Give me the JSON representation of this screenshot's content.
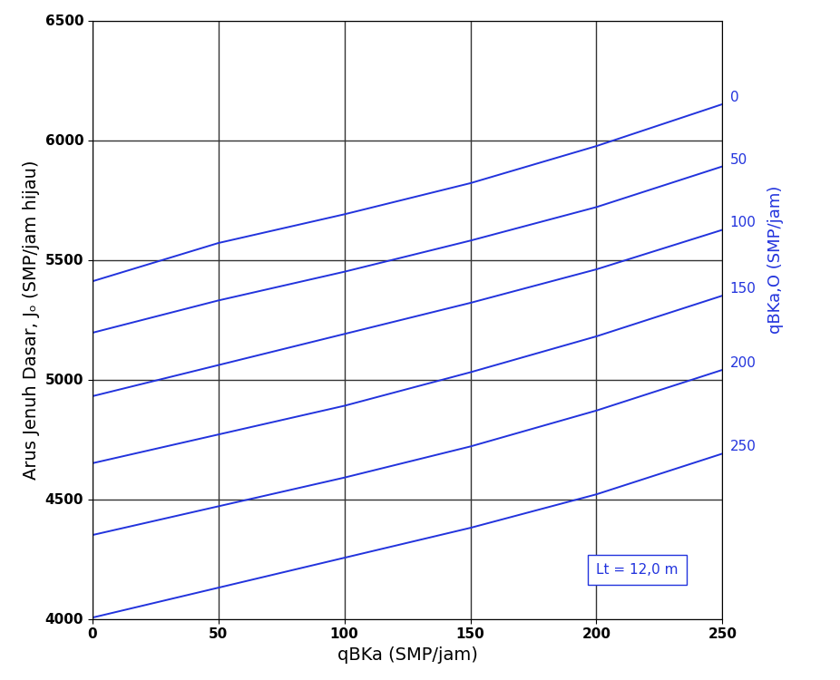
{
  "chart_data": {
    "type": "line",
    "x_label": "qBKa (SMP/jam)",
    "y_label": "Arus Jenuh Dasar, Jₒ (SMP/jam hijau)",
    "y2_label": "qBKa,O (SMP/jam)",
    "annotations": [
      "Lt = 12,0 m"
    ],
    "x": [
      0,
      50,
      100,
      150,
      200,
      250
    ],
    "series": [
      {
        "name": "0",
        "color": "#2233dd",
        "values": [
          5410,
          5570,
          5690,
          5820,
          5975,
          6150
        ]
      },
      {
        "name": "50",
        "color": "#2233dd",
        "values": [
          5195,
          5330,
          5450,
          5580,
          5720,
          5890
        ]
      },
      {
        "name": "100",
        "color": "#2233dd",
        "values": [
          4930,
          5060,
          5190,
          5320,
          5460,
          5625
        ]
      },
      {
        "name": "150",
        "color": "#2233dd",
        "values": [
          4650,
          4770,
          4890,
          5030,
          5180,
          5350
        ]
      },
      {
        "name": "200",
        "color": "#2233dd",
        "values": [
          4350,
          4470,
          4590,
          4720,
          4870,
          5040
        ]
      },
      {
        "name": "250",
        "color": "#2233dd",
        "values": [
          4005,
          4130,
          4255,
          4380,
          4520,
          4690
        ]
      }
    ],
    "xlim": [
      0,
      250
    ],
    "xticks": [
      0,
      50,
      100,
      150,
      200,
      250
    ],
    "ylim": [
      4000,
      6500
    ],
    "yticks": [
      4000,
      4500,
      5000,
      5500,
      6000,
      6500
    ],
    "grid": true
  }
}
